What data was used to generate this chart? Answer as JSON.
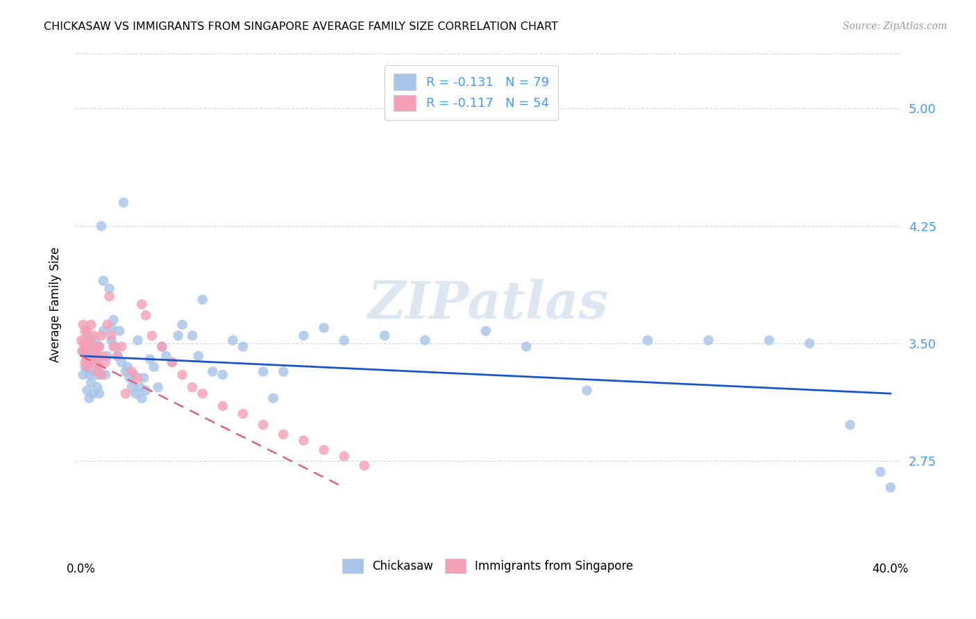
{
  "title": "CHICKASAW VS IMMIGRANTS FROM SINGAPORE AVERAGE FAMILY SIZE CORRELATION CHART",
  "source": "Source: ZipAtlas.com",
  "ylabel": "Average Family Size",
  "yticks": [
    2.75,
    3.5,
    4.25,
    5.0
  ],
  "xlim": [
    -0.003,
    0.405
  ],
  "ylim": [
    2.15,
    5.35
  ],
  "legend1_label": "R = -0.131   N = 79",
  "legend2_label": "R = -0.117   N = 54",
  "legend_bottom1": "Chickasaw",
  "legend_bottom2": "Immigrants from Singapore",
  "color_blue": "#a8c4e8",
  "color_pink": "#f5a0b8",
  "line_blue": "#1a55c8",
  "line_pink": "#e06080",
  "watermark": "ZIPatlas",
  "background_color": "#ffffff",
  "tick_color": "#4499ff",
  "grid_color": "#d0d8e8",
  "blue_line_x0": 0.0,
  "blue_line_y0": 3.42,
  "blue_line_x1": 0.4,
  "blue_line_y1": 3.18,
  "pink_line_x0": 0.0,
  "pink_line_y0": 3.42,
  "pink_line_x1": 0.13,
  "pink_line_y1": 2.58,
  "chickasaw_x": [
    0.001,
    0.001,
    0.002,
    0.002,
    0.003,
    0.003,
    0.003,
    0.004,
    0.004,
    0.005,
    0.005,
    0.005,
    0.006,
    0.006,
    0.007,
    0.007,
    0.008,
    0.008,
    0.008,
    0.009,
    0.009,
    0.01,
    0.011,
    0.011,
    0.012,
    0.013,
    0.014,
    0.015,
    0.015,
    0.016,
    0.017,
    0.018,
    0.019,
    0.02,
    0.021,
    0.022,
    0.023,
    0.024,
    0.025,
    0.026,
    0.027,
    0.028,
    0.029,
    0.03,
    0.031,
    0.032,
    0.034,
    0.036,
    0.038,
    0.04,
    0.042,
    0.045,
    0.048,
    0.05,
    0.055,
    0.058,
    0.06,
    0.065,
    0.07,
    0.075,
    0.08,
    0.09,
    0.095,
    0.1,
    0.11,
    0.12,
    0.13,
    0.15,
    0.17,
    0.2,
    0.22,
    0.25,
    0.28,
    0.31,
    0.34,
    0.36,
    0.38,
    0.395,
    0.4
  ],
  "chickasaw_y": [
    3.3,
    3.45,
    3.35,
    3.5,
    3.4,
    3.55,
    3.2,
    3.3,
    3.15,
    3.38,
    3.32,
    3.25,
    3.42,
    3.18,
    3.45,
    3.52,
    3.38,
    3.3,
    3.22,
    3.48,
    3.18,
    4.25,
    3.9,
    3.58,
    3.3,
    3.42,
    3.85,
    3.52,
    3.6,
    3.65,
    3.48,
    3.42,
    3.58,
    3.38,
    4.4,
    3.32,
    3.35,
    3.28,
    3.22,
    3.3,
    3.18,
    3.52,
    3.22,
    3.15,
    3.28,
    3.2,
    3.4,
    3.35,
    3.22,
    3.48,
    3.42,
    3.38,
    3.55,
    3.62,
    3.55,
    3.42,
    3.78,
    3.32,
    3.3,
    3.52,
    3.48,
    3.32,
    3.15,
    3.32,
    3.55,
    3.6,
    3.52,
    3.55,
    3.52,
    3.58,
    3.48,
    3.2,
    3.52,
    3.52,
    3.52,
    3.5,
    2.98,
    2.68,
    2.58
  ],
  "singapore_x": [
    0.0002,
    0.0005,
    0.001,
    0.001,
    0.002,
    0.002,
    0.002,
    0.003,
    0.003,
    0.003,
    0.003,
    0.004,
    0.004,
    0.004,
    0.005,
    0.005,
    0.005,
    0.006,
    0.006,
    0.007,
    0.007,
    0.008,
    0.008,
    0.009,
    0.009,
    0.01,
    0.01,
    0.011,
    0.012,
    0.013,
    0.014,
    0.015,
    0.016,
    0.018,
    0.02,
    0.022,
    0.025,
    0.028,
    0.03,
    0.032,
    0.035,
    0.04,
    0.045,
    0.05,
    0.055,
    0.06,
    0.07,
    0.08,
    0.09,
    0.1,
    0.11,
    0.12,
    0.13,
    0.14
  ],
  "singapore_y": [
    3.52,
    3.45,
    3.62,
    3.5,
    3.58,
    3.45,
    3.38,
    3.48,
    3.4,
    3.35,
    3.58,
    3.52,
    3.45,
    3.38,
    3.62,
    3.48,
    3.42,
    3.55,
    3.45,
    3.48,
    3.38,
    3.42,
    3.32,
    3.48,
    3.35,
    3.3,
    3.55,
    3.42,
    3.38,
    3.62,
    3.8,
    3.55,
    3.48,
    3.42,
    3.48,
    3.18,
    3.32,
    3.28,
    3.75,
    3.68,
    3.55,
    3.48,
    3.38,
    3.3,
    3.22,
    3.18,
    3.1,
    3.05,
    2.98,
    2.92,
    2.88,
    2.82,
    2.78,
    2.72
  ]
}
